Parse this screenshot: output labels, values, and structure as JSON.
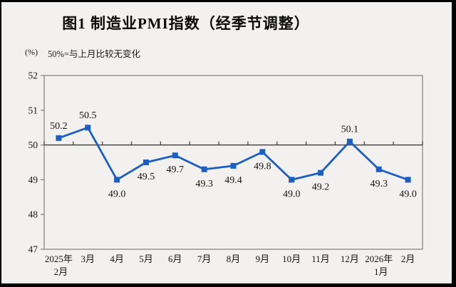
{
  "header": {
    "title": "图1  制造业PMI指数（经季节调整）",
    "unit_label": "(%)",
    "note": "50%=与上月比较无变化"
  },
  "chart_data": {
    "type": "line",
    "title": "图1  制造业PMI指数（经季节调整）",
    "ylabel": "(%)",
    "note": "50%=与上月比较无变化",
    "categories": [
      "2025年\n2月",
      "3月",
      "4月",
      "5月",
      "6月",
      "7月",
      "8月",
      "9月",
      "10月",
      "11月",
      "12月",
      "2026年\n1月",
      "2月"
    ],
    "values": [
      50.2,
      50.5,
      49.0,
      49.5,
      49.7,
      49.3,
      49.4,
      49.8,
      49.0,
      49.2,
      50.1,
      49.3,
      49.0
    ],
    "point_labels": [
      "50.2",
      "50.5",
      "49.0",
      "49.5",
      "49.7",
      "49.3",
      "49.4",
      "49.8",
      "49.0",
      "49.2",
      "50.1",
      "49.3",
      "49.0"
    ],
    "label_position": [
      "above",
      "above",
      "below",
      "below",
      "below",
      "below",
      "below",
      "below",
      "below",
      "below",
      "above",
      "below",
      "below"
    ],
    "ylim": [
      47,
      52
    ],
    "ytick_interval": 1,
    "yticks": [
      "52",
      "51",
      "50",
      "49",
      "48",
      "47"
    ],
    "reference_line": 50,
    "grid": false,
    "legend": "none",
    "line_color": "#1b5ec4",
    "marker": "square",
    "marker_color": "#1b5ec4",
    "axis_border_color": "#7f7f7f",
    "reference_line_color": "#3c3c3c",
    "background_color": "#f3f1ef",
    "frame_color": "#000000"
  }
}
